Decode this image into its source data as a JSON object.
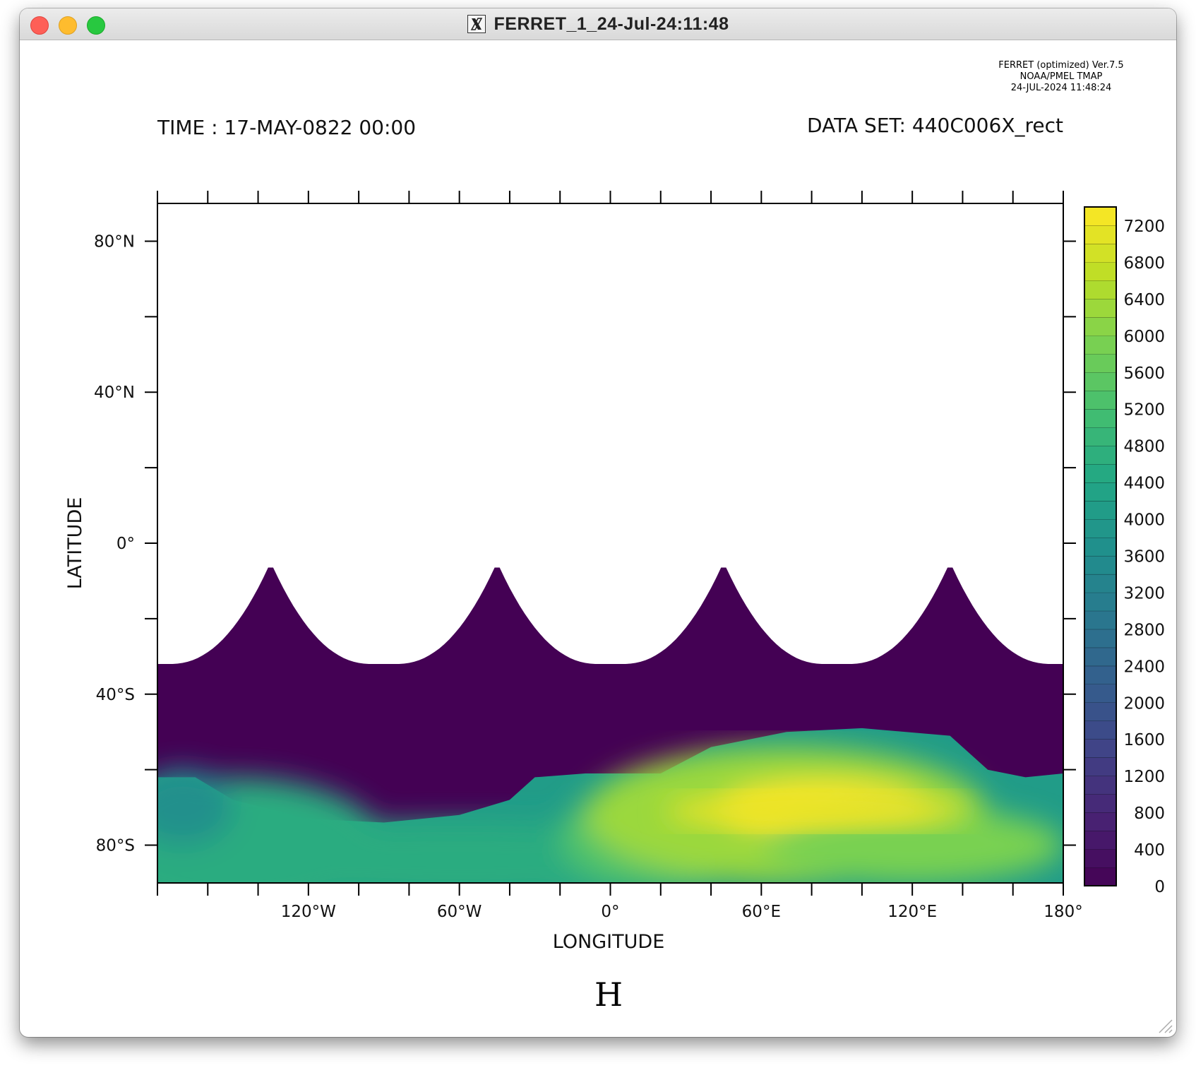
{
  "window": {
    "title": "FERRET_1_24-Jul-24:11:48",
    "title_icon": "x11-icon"
  },
  "plot": {
    "version_lines": [
      "FERRET (optimized) Ver.7.5",
      "NOAA/PMEL TMAP",
      "24-JUL-2024 11:48:24"
    ],
    "time_label": "TIME : 17-MAY-0822 00:00",
    "dataset_label": "DATA SET: 440C006X_rect",
    "variable_label": "H"
  },
  "chart_data": {
    "type": "heatmap",
    "title": "",
    "xlabel": "LONGITUDE",
    "ylabel": "LATITUDE",
    "xlim": [
      -180,
      180
    ],
    "ylim": [
      -90,
      90
    ],
    "x_tick_labels": [
      {
        "value": -120,
        "label": "120°W"
      },
      {
        "value": -60,
        "label": "60°W"
      },
      {
        "value": 0,
        "label": "0°"
      },
      {
        "value": 60,
        "label": "60°E"
      },
      {
        "value": 120,
        "label": "120°E"
      },
      {
        "value": 180,
        "label": "180°"
      }
    ],
    "y_tick_labels": [
      {
        "value": 80,
        "label": "80°N"
      },
      {
        "value": 40,
        "label": "40°N"
      },
      {
        "value": 0,
        "label": "0°"
      },
      {
        "value": -40,
        "label": "40°S"
      },
      {
        "value": -80,
        "label": "80°S"
      }
    ],
    "colorbar": {
      "min": 0,
      "max": 7400,
      "step": 200,
      "tick_labels": [
        "0",
        "400",
        "800",
        "1200",
        "1600",
        "2000",
        "2400",
        "2800",
        "3200",
        "3600",
        "4000",
        "4400",
        "4800",
        "5200",
        "5600",
        "6000",
        "6400",
        "6800",
        "7200"
      ],
      "colormap": "viridis"
    },
    "masked_region": "white above scalloped boundary (data missing north of ~32°S, with peaks near 5°S at 135°W, 45°W, 45°E, 135°E)",
    "boundary_peaks_lon": [
      -135,
      -45,
      45,
      135
    ],
    "boundary_peak_lat": -5,
    "boundary_base_lat": -32,
    "field_features": [
      {
        "region": "ocean band 32°S to ~65°S",
        "value": 0
      },
      {
        "region": "maximum near 80°E, 72°S",
        "value": 7200
      },
      {
        "region": "coastal western band 180°W-120°W near 60°S-90°S",
        "value": 4500
      }
    ],
    "colors": {
      "masked": "#ffffff",
      "low": "#440154",
      "high": "#fde725"
    }
  }
}
